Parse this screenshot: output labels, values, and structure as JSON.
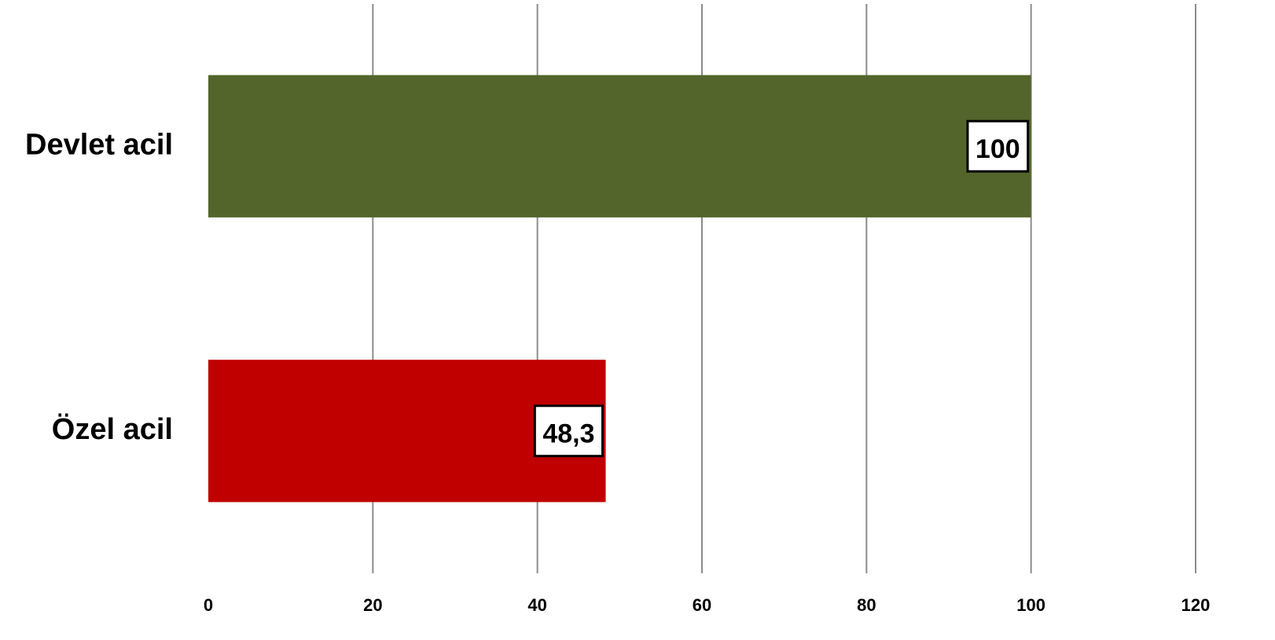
{
  "chart_data": {
    "type": "barh",
    "categories": [
      "Devlet acil",
      "Özel acil"
    ],
    "values": [
      100,
      48.3
    ],
    "value_labels": [
      "100",
      "48,3"
    ],
    "colors": [
      "#53652b",
      "#c00000"
    ],
    "xlim": [
      0,
      120
    ],
    "xticks": [
      0,
      20,
      40,
      60,
      80,
      100,
      120
    ],
    "grid": true
  }
}
